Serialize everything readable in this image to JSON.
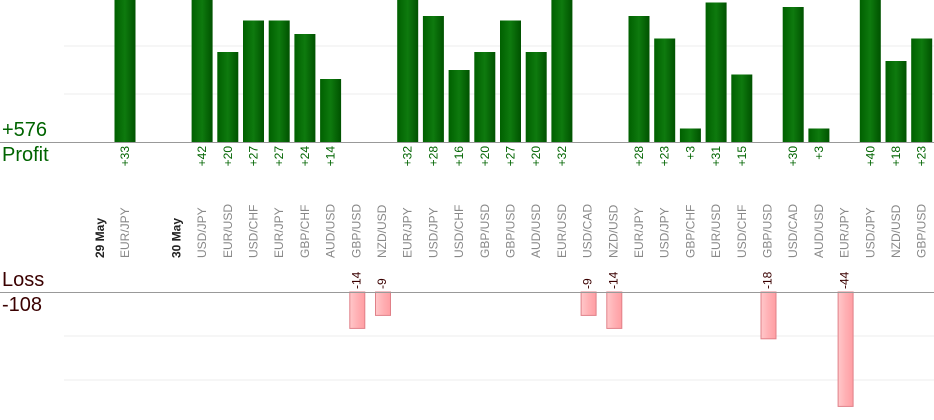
{
  "chart_data": {
    "type": "bar",
    "totals": {
      "profit_value": "+576",
      "profit_label": "Profit",
      "loss_label": "Loss",
      "loss_value": "-108"
    },
    "colors": {
      "profit": "#0b6b0b",
      "profit_dark": "#004d00",
      "profit_text": "#006400",
      "loss": "#ffb6b9",
      "loss_border": "#e08088",
      "loss_text": "#3a0000",
      "grid": "#eeeeee",
      "axis": "#999999",
      "category_text": "#888888"
    },
    "profit_ylim": [
      0,
      60
    ],
    "loss_ylim": [
      0,
      70
    ],
    "groups": [
      {
        "date": "29 May",
        "trades": [
          {
            "pair": "EUR/JPY",
            "value": 33
          }
        ]
      },
      {
        "date": "30 May",
        "trades": [
          {
            "pair": "USD/JPY",
            "value": 42
          },
          {
            "pair": "EUR/USD",
            "value": 20
          },
          {
            "pair": "USD/CHF",
            "value": 27
          },
          {
            "pair": "EUR/JPY",
            "value": 27
          },
          {
            "pair": "GBP/CHF",
            "value": 24
          },
          {
            "pair": "AUD/USD",
            "value": 14
          },
          {
            "pair": "GBP/USD",
            "value": -14
          },
          {
            "pair": "NZD/USD",
            "value": -9
          },
          {
            "pair": "EUR/JPY",
            "value": 32
          },
          {
            "pair": "USD/JPY",
            "value": 28
          },
          {
            "pair": "USD/CHF",
            "value": 16
          },
          {
            "pair": "GBP/USD",
            "value": 20
          },
          {
            "pair": "GBP/USD",
            "value": 27
          },
          {
            "pair": "AUD/USD",
            "value": 20
          },
          {
            "pair": "EUR/USD",
            "value": 32
          },
          {
            "pair": "USD/CAD",
            "value": -9
          },
          {
            "pair": "NZD/USD",
            "value": -14
          },
          {
            "pair": "EUR/JPY",
            "value": 28
          },
          {
            "pair": "USD/JPY",
            "value": 23
          },
          {
            "pair": "GBP/CHF",
            "value": 3
          },
          {
            "pair": "EUR/USD",
            "value": 31
          },
          {
            "pair": "USD/CHF",
            "value": 15
          },
          {
            "pair": "GBP/USD",
            "value": -18
          },
          {
            "pair": "USD/CAD",
            "value": 30
          },
          {
            "pair": "AUD/USD",
            "value": 3
          },
          {
            "pair": "EUR/JPY",
            "value": -44
          },
          {
            "pair": "USD/JPY",
            "value": 40
          },
          {
            "pair": "NZD/USD",
            "value": 18
          },
          {
            "pair": "GBP/USD",
            "value": 23
          }
        ]
      }
    ]
  }
}
